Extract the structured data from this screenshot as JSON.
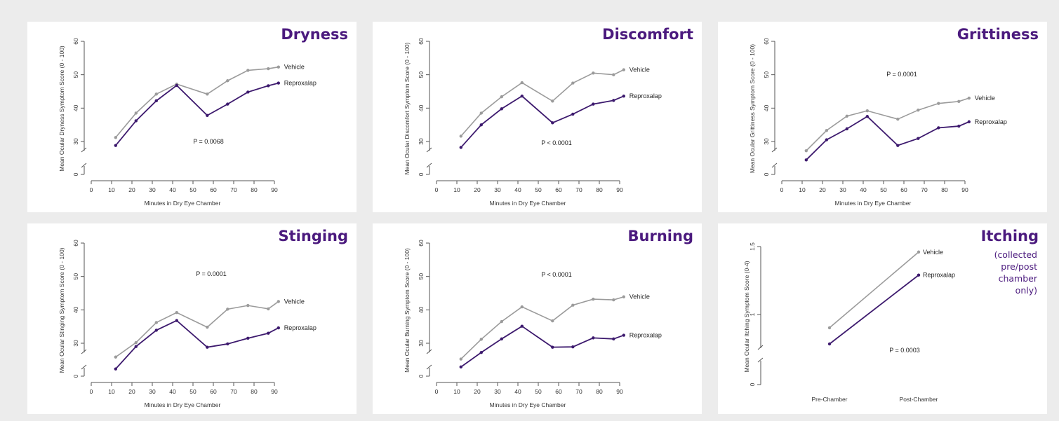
{
  "colors": {
    "vehicle": "#9b9b9b",
    "reproxalap": "#3d1a6e",
    "title": "#4b1a7e"
  },
  "chart_data": [
    {
      "id": "dryness",
      "type": "line",
      "title": "Dryness",
      "xlabel": "Minutes in Dry Eye Chamber",
      "ylabel": "Mean Ocular Dryness Symptom Score (0 - 100)",
      "xlim": [
        0,
        90
      ],
      "ylim": [
        0,
        60
      ],
      "axis_break": true,
      "xticks": [
        "0",
        "10",
        "20",
        "30",
        "40",
        "50",
        "60",
        "70",
        "80",
        "90"
      ],
      "yticks": [
        "0",
        "30",
        "40",
        "50",
        "60"
      ],
      "x": [
        12,
        22,
        32,
        42,
        57,
        67,
        77,
        87,
        92
      ],
      "series": [
        {
          "name": "Vehicle",
          "values": [
            31.2,
            38.5,
            44.2,
            47.2,
            44.2,
            48.2,
            51.3,
            51.8,
            52.3
          ]
        },
        {
          "name": "Reproxalap",
          "values": [
            28.8,
            36.2,
            42.2,
            46.8,
            37.8,
            41.2,
            44.8,
            46.7,
            47.5
          ]
        }
      ],
      "annotation": "P = 0.0068"
    },
    {
      "id": "discomfort",
      "type": "line",
      "title": "Discomfort",
      "xlabel": "Minutes in Dry Eye Chamber",
      "ylabel": "Mean Ocular Discomfort Symptom Score (0 - 100)",
      "xlim": [
        0,
        90
      ],
      "ylim": [
        0,
        60
      ],
      "axis_break": true,
      "xticks": [
        "0",
        "10",
        "20",
        "30",
        "40",
        "50",
        "60",
        "70",
        "80",
        "90"
      ],
      "yticks": [
        "0",
        "30",
        "40",
        "50",
        "60"
      ],
      "x": [
        12,
        22,
        32,
        42,
        57,
        67,
        77,
        87,
        92
      ],
      "series": [
        {
          "name": "Vehicle",
          "values": [
            31.6,
            38.5,
            43.4,
            47.6,
            42.1,
            47.5,
            50.5,
            50.0,
            51.5
          ]
        },
        {
          "name": "Reproxalap",
          "values": [
            28.2,
            35.0,
            39.8,
            43.6,
            35.6,
            38.2,
            41.2,
            42.3,
            43.6
          ]
        }
      ],
      "annotation": "P < 0.0001"
    },
    {
      "id": "grittiness",
      "type": "line",
      "title": "Grittiness",
      "xlabel": "Minutes in Dry Eye Chamber",
      "ylabel": "Mean Ocular Grittiness Symptom Score (0 - 100)",
      "xlim": [
        0,
        90
      ],
      "ylim": [
        0,
        60
      ],
      "axis_break": true,
      "xticks": [
        "0",
        "10",
        "20",
        "30",
        "40",
        "50",
        "60",
        "70",
        "80",
        "90"
      ],
      "yticks": [
        "0",
        "30",
        "40",
        "50",
        "60"
      ],
      "x": [
        12,
        22,
        32,
        42,
        57,
        67,
        77,
        87,
        92
      ],
      "series": [
        {
          "name": "Vehicle",
          "values": [
            27.2,
            33.3,
            37.6,
            39.2,
            36.7,
            39.4,
            41.4,
            42.0,
            43.0
          ]
        },
        {
          "name": "Reproxalap",
          "values": [
            24.4,
            30.5,
            33.8,
            37.5,
            28.8,
            30.9,
            34.1,
            34.6,
            35.9
          ]
        }
      ],
      "annotation": "P = 0.0001"
    },
    {
      "id": "stinging",
      "type": "line",
      "title": "Stinging",
      "xlabel": "Minutes in Dry Eye Chamber",
      "ylabel": "Mean Ocular Stinging Symptom Score (0 - 100)",
      "xlim": [
        0,
        90
      ],
      "ylim": [
        0,
        60
      ],
      "axis_break": true,
      "xticks": [
        "0",
        "10",
        "20",
        "30",
        "40",
        "50",
        "60",
        "70",
        "80",
        "90"
      ],
      "yticks": [
        "0",
        "30",
        "40",
        "50",
        "60"
      ],
      "x": [
        12,
        22,
        32,
        42,
        57,
        67,
        77,
        87,
        92
      ],
      "series": [
        {
          "name": "Vehicle",
          "values": [
            25.8,
            30.2,
            36.2,
            39.2,
            34.8,
            40.2,
            41.3,
            40.3,
            42.5
          ]
        },
        {
          "name": "Reproxalap",
          "values": [
            22.2,
            29.0,
            33.9,
            36.8,
            28.8,
            29.8,
            31.5,
            33.0,
            34.6
          ]
        }
      ],
      "annotation": "P = 0.0001"
    },
    {
      "id": "burning",
      "type": "line",
      "title": "Burning",
      "xlabel": "Minutes in Dry Eye Chamber",
      "ylabel": "Mean Ocular Burning Symptom Score (0 - 100)",
      "xlim": [
        0,
        90
      ],
      "ylim": [
        0,
        60
      ],
      "axis_break": true,
      "xticks": [
        "0",
        "10",
        "20",
        "30",
        "40",
        "50",
        "60",
        "70",
        "80",
        "90"
      ],
      "yticks": [
        "0",
        "30",
        "40",
        "50",
        "60"
      ],
      "x": [
        12,
        22,
        32,
        42,
        57,
        67,
        77,
        87,
        92
      ],
      "series": [
        {
          "name": "Vehicle",
          "values": [
            25.2,
            31.2,
            36.5,
            40.9,
            36.7,
            41.4,
            43.2,
            43.0,
            43.9
          ]
        },
        {
          "name": "Reproxalap",
          "values": [
            22.8,
            27.2,
            31.3,
            35.1,
            28.8,
            28.9,
            31.6,
            31.3,
            32.4
          ]
        }
      ],
      "annotation": "P < 0.0001"
    },
    {
      "id": "itching",
      "type": "line",
      "title": "Itching",
      "subtitle": "(collected pre/post chamber only)",
      "xlabel": "",
      "ylabel": "Mean Ocular Itching Symptom Score (0-4)",
      "categories": [
        "Pre-Chamber",
        "Post-Chamber"
      ],
      "ylim": [
        0,
        1.5
      ],
      "axis_break": true,
      "yticks": [
        "0",
        "1",
        "1.5"
      ],
      "series": [
        {
          "name": "Vehicle",
          "values": [
            0.91,
            1.46
          ]
        },
        {
          "name": "Reproxalap",
          "values": [
            0.8,
            1.29
          ]
        }
      ],
      "annotation": "P = 0.0003"
    }
  ]
}
